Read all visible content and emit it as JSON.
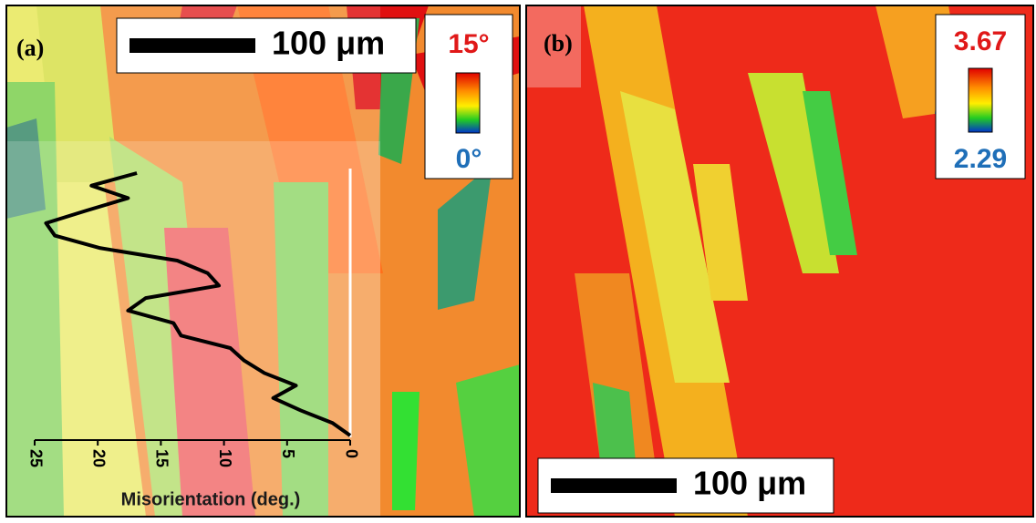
{
  "panels": [
    {
      "label": "(a)",
      "scale_bar": "100 μm",
      "colorbar_max": "15°",
      "colorbar_min": "0°"
    },
    {
      "label": "(b)",
      "scale_bar": "100 μm",
      "colorbar_max": "3.67",
      "colorbar_min": "2.29"
    }
  ],
  "chart_data": {
    "type": "line",
    "xlabel": "Misorientation (deg.)",
    "xlim": [
      25,
      0
    ],
    "xticks": [
      25,
      20,
      15,
      10,
      5,
      0
    ],
    "values": [
      0,
      1.4,
      3.9,
      6.1,
      4.3,
      6.8,
      8.4,
      9.5,
      13.4,
      14,
      17.6,
      16.2,
      10.4,
      11.3,
      13.7,
      19.8,
      23.4,
      24.1,
      20.9,
      17.6,
      20.5,
      16.9
    ],
    "color": "#000000"
  }
}
